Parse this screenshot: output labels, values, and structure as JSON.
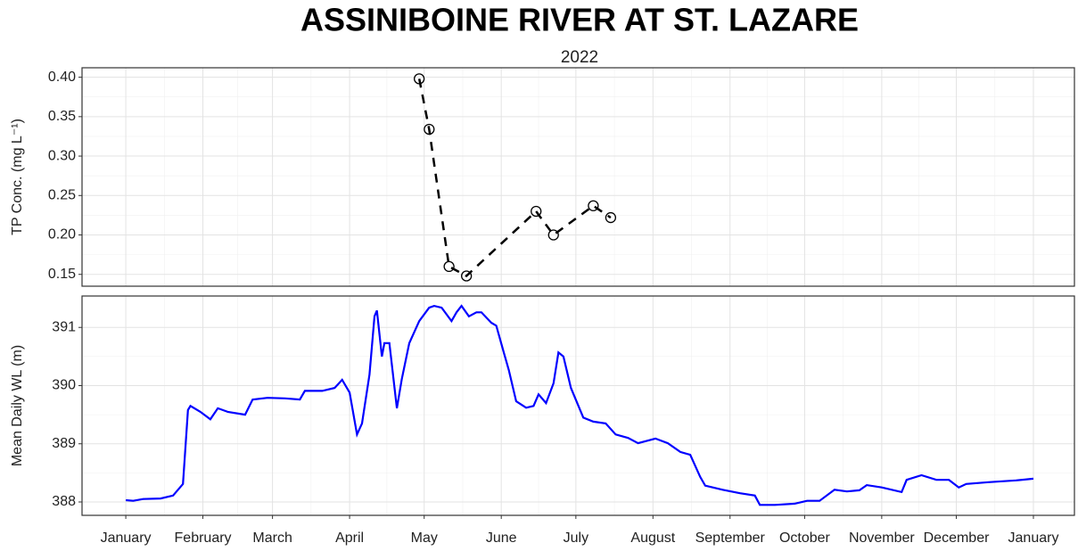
{
  "title": "ASSINIBOINE RIVER AT ST. LAZARE",
  "subtitle": "2022",
  "chart_data": [
    {
      "type": "line",
      "ylabel": "TP Conc. (mg L⁻¹)",
      "x": [
        118,
        122,
        130,
        137,
        165,
        172,
        188,
        195
      ],
      "values": [
        0.398,
        0.334,
        0.16,
        0.148,
        0.23,
        0.2,
        0.237,
        0.222
      ],
      "color": "#000000",
      "linestyle": "dashed",
      "marker": "open-circle",
      "xlim": [
        -17.6,
        381.5
      ],
      "xticks": [
        0,
        31,
        59,
        90,
        120,
        151,
        181,
        212,
        243,
        273,
        304,
        334,
        365
      ],
      "ylim": [
        0.135,
        0.412
      ],
      "yticks": [
        {
          "value": 0.15,
          "label": "0.15"
        },
        {
          "value": 0.2,
          "label": "0.20"
        },
        {
          "value": 0.25,
          "label": "0.25"
        },
        {
          "value": 0.3,
          "label": "0.30"
        },
        {
          "value": 0.35,
          "label": "0.35"
        },
        {
          "value": 0.4,
          "label": "0.40"
        }
      ],
      "grid": true
    },
    {
      "type": "line",
      "ylabel": "Mean Daily WL (m)",
      "x": [
        0,
        3,
        7,
        14,
        19,
        23,
        25,
        26,
        30,
        34,
        37,
        41,
        48,
        51,
        57,
        64,
        70,
        72,
        79,
        84,
        87,
        90,
        93,
        95,
        98,
        100,
        101,
        103,
        104,
        106,
        109,
        111,
        114,
        118,
        122,
        124,
        127,
        131,
        133,
        135,
        138,
        141,
        143,
        147,
        149,
        152,
        154,
        157,
        161,
        164,
        166,
        169,
        172,
        174,
        176,
        179,
        184,
        188,
        193,
        197,
        202,
        206,
        213,
        218,
        223,
        227,
        231,
        233,
        240,
        247,
        253,
        255,
        261,
        269,
        274,
        279,
        285,
        290,
        295,
        298,
        304,
        312,
        314,
        320,
        326,
        331,
        335,
        338,
        347,
        358,
        365
      ],
      "values": [
        388.03,
        388.02,
        388.05,
        388.06,
        388.11,
        388.31,
        389.58,
        389.65,
        389.55,
        389.42,
        389.61,
        389.55,
        389.5,
        389.76,
        389.79,
        389.78,
        389.76,
        389.91,
        389.91,
        389.96,
        390.1,
        389.88,
        389.16,
        389.35,
        390.19,
        391.19,
        391.29,
        390.5,
        390.73,
        390.73,
        389.61,
        390.11,
        390.73,
        391.11,
        391.34,
        391.37,
        391.34,
        391.11,
        391.26,
        391.37,
        391.19,
        391.26,
        391.26,
        391.08,
        391.03,
        390.57,
        390.27,
        389.73,
        389.62,
        389.65,
        389.85,
        389.7,
        390.04,
        390.57,
        390.5,
        389.96,
        389.45,
        389.38,
        389.35,
        389.16,
        389.1,
        389.01,
        389.09,
        389.01,
        388.86,
        388.81,
        388.43,
        388.28,
        388.21,
        388.15,
        388.11,
        387.95,
        387.95,
        387.97,
        388.02,
        388.02,
        388.21,
        388.18,
        388.2,
        388.29,
        388.25,
        388.17,
        388.38,
        388.46,
        388.38,
        388.38,
        388.25,
        388.31,
        388.34,
        388.37,
        388.4
      ],
      "color": "#0000ff",
      "linestyle": "solid",
      "xlim": [
        -17.6,
        381.5
      ],
      "xticks": [
        {
          "value": 0,
          "label": "January"
        },
        {
          "value": 31,
          "label": "February"
        },
        {
          "value": 59,
          "label": "March"
        },
        {
          "value": 90,
          "label": "April"
        },
        {
          "value": 120,
          "label": "May"
        },
        {
          "value": 151,
          "label": "June"
        },
        {
          "value": 181,
          "label": "July"
        },
        {
          "value": 212,
          "label": "August"
        },
        {
          "value": 243,
          "label": "September"
        },
        {
          "value": 273,
          "label": "October"
        },
        {
          "value": 304,
          "label": "November"
        },
        {
          "value": 334,
          "label": "December"
        },
        {
          "value": 365,
          "label": "January"
        }
      ],
      "ylim": [
        387.77,
        391.54
      ],
      "yticks": [
        388,
        389,
        390,
        391
      ],
      "grid": true
    }
  ]
}
